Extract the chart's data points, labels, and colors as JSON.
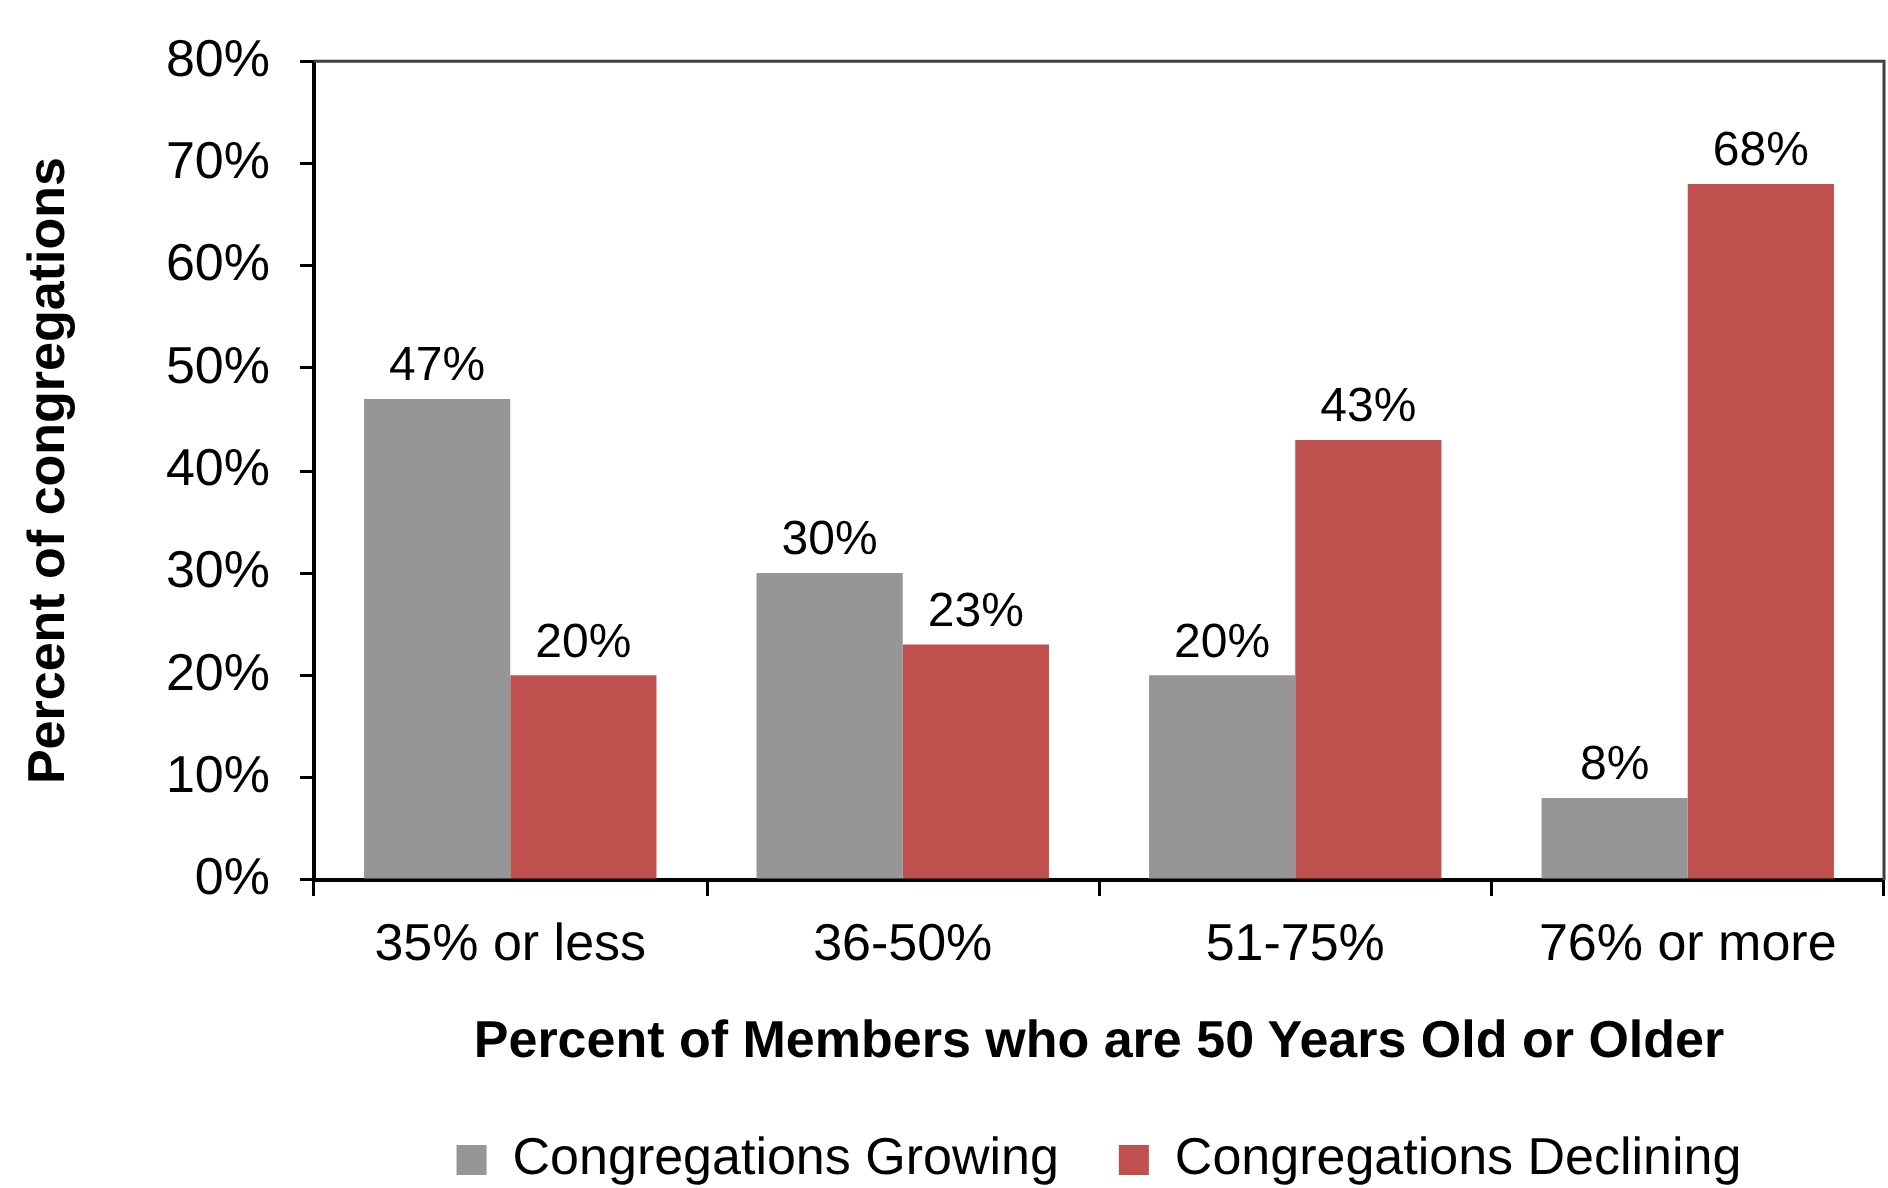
{
  "chart_data": {
    "type": "bar",
    "xlabel": "Percent of Members who are 50 Years Old or Older",
    "ylabel": "Percent of congregations",
    "categories": [
      "35% or less",
      "36-50%",
      "51-75%",
      "76% or more"
    ],
    "series": [
      {
        "name": "Congregations Growing",
        "color": "#969696",
        "values": [
          47,
          30,
          20,
          8
        ],
        "value_labels": [
          "47%",
          "30%",
          "20%",
          "8%"
        ]
      },
      {
        "name": "Congregations Declining",
        "color": "#c0504d",
        "values": [
          20,
          23,
          43,
          68
        ],
        "value_labels": [
          "20%",
          "23%",
          "43%",
          "68%"
        ]
      }
    ],
    "ylim": [
      0,
      80
    ],
    "yticks": [
      {
        "value": 0,
        "label": "0%"
      },
      {
        "value": 10,
        "label": "10%"
      },
      {
        "value": 20,
        "label": "20%"
      },
      {
        "value": 30,
        "label": "30%"
      },
      {
        "value": 40,
        "label": "40%"
      },
      {
        "value": 50,
        "label": "50%"
      },
      {
        "value": 60,
        "label": "60%"
      },
      {
        "value": 70,
        "label": "70%"
      },
      {
        "value": 80,
        "label": "80%"
      }
    ],
    "grid": false,
    "legend": "bottom"
  }
}
